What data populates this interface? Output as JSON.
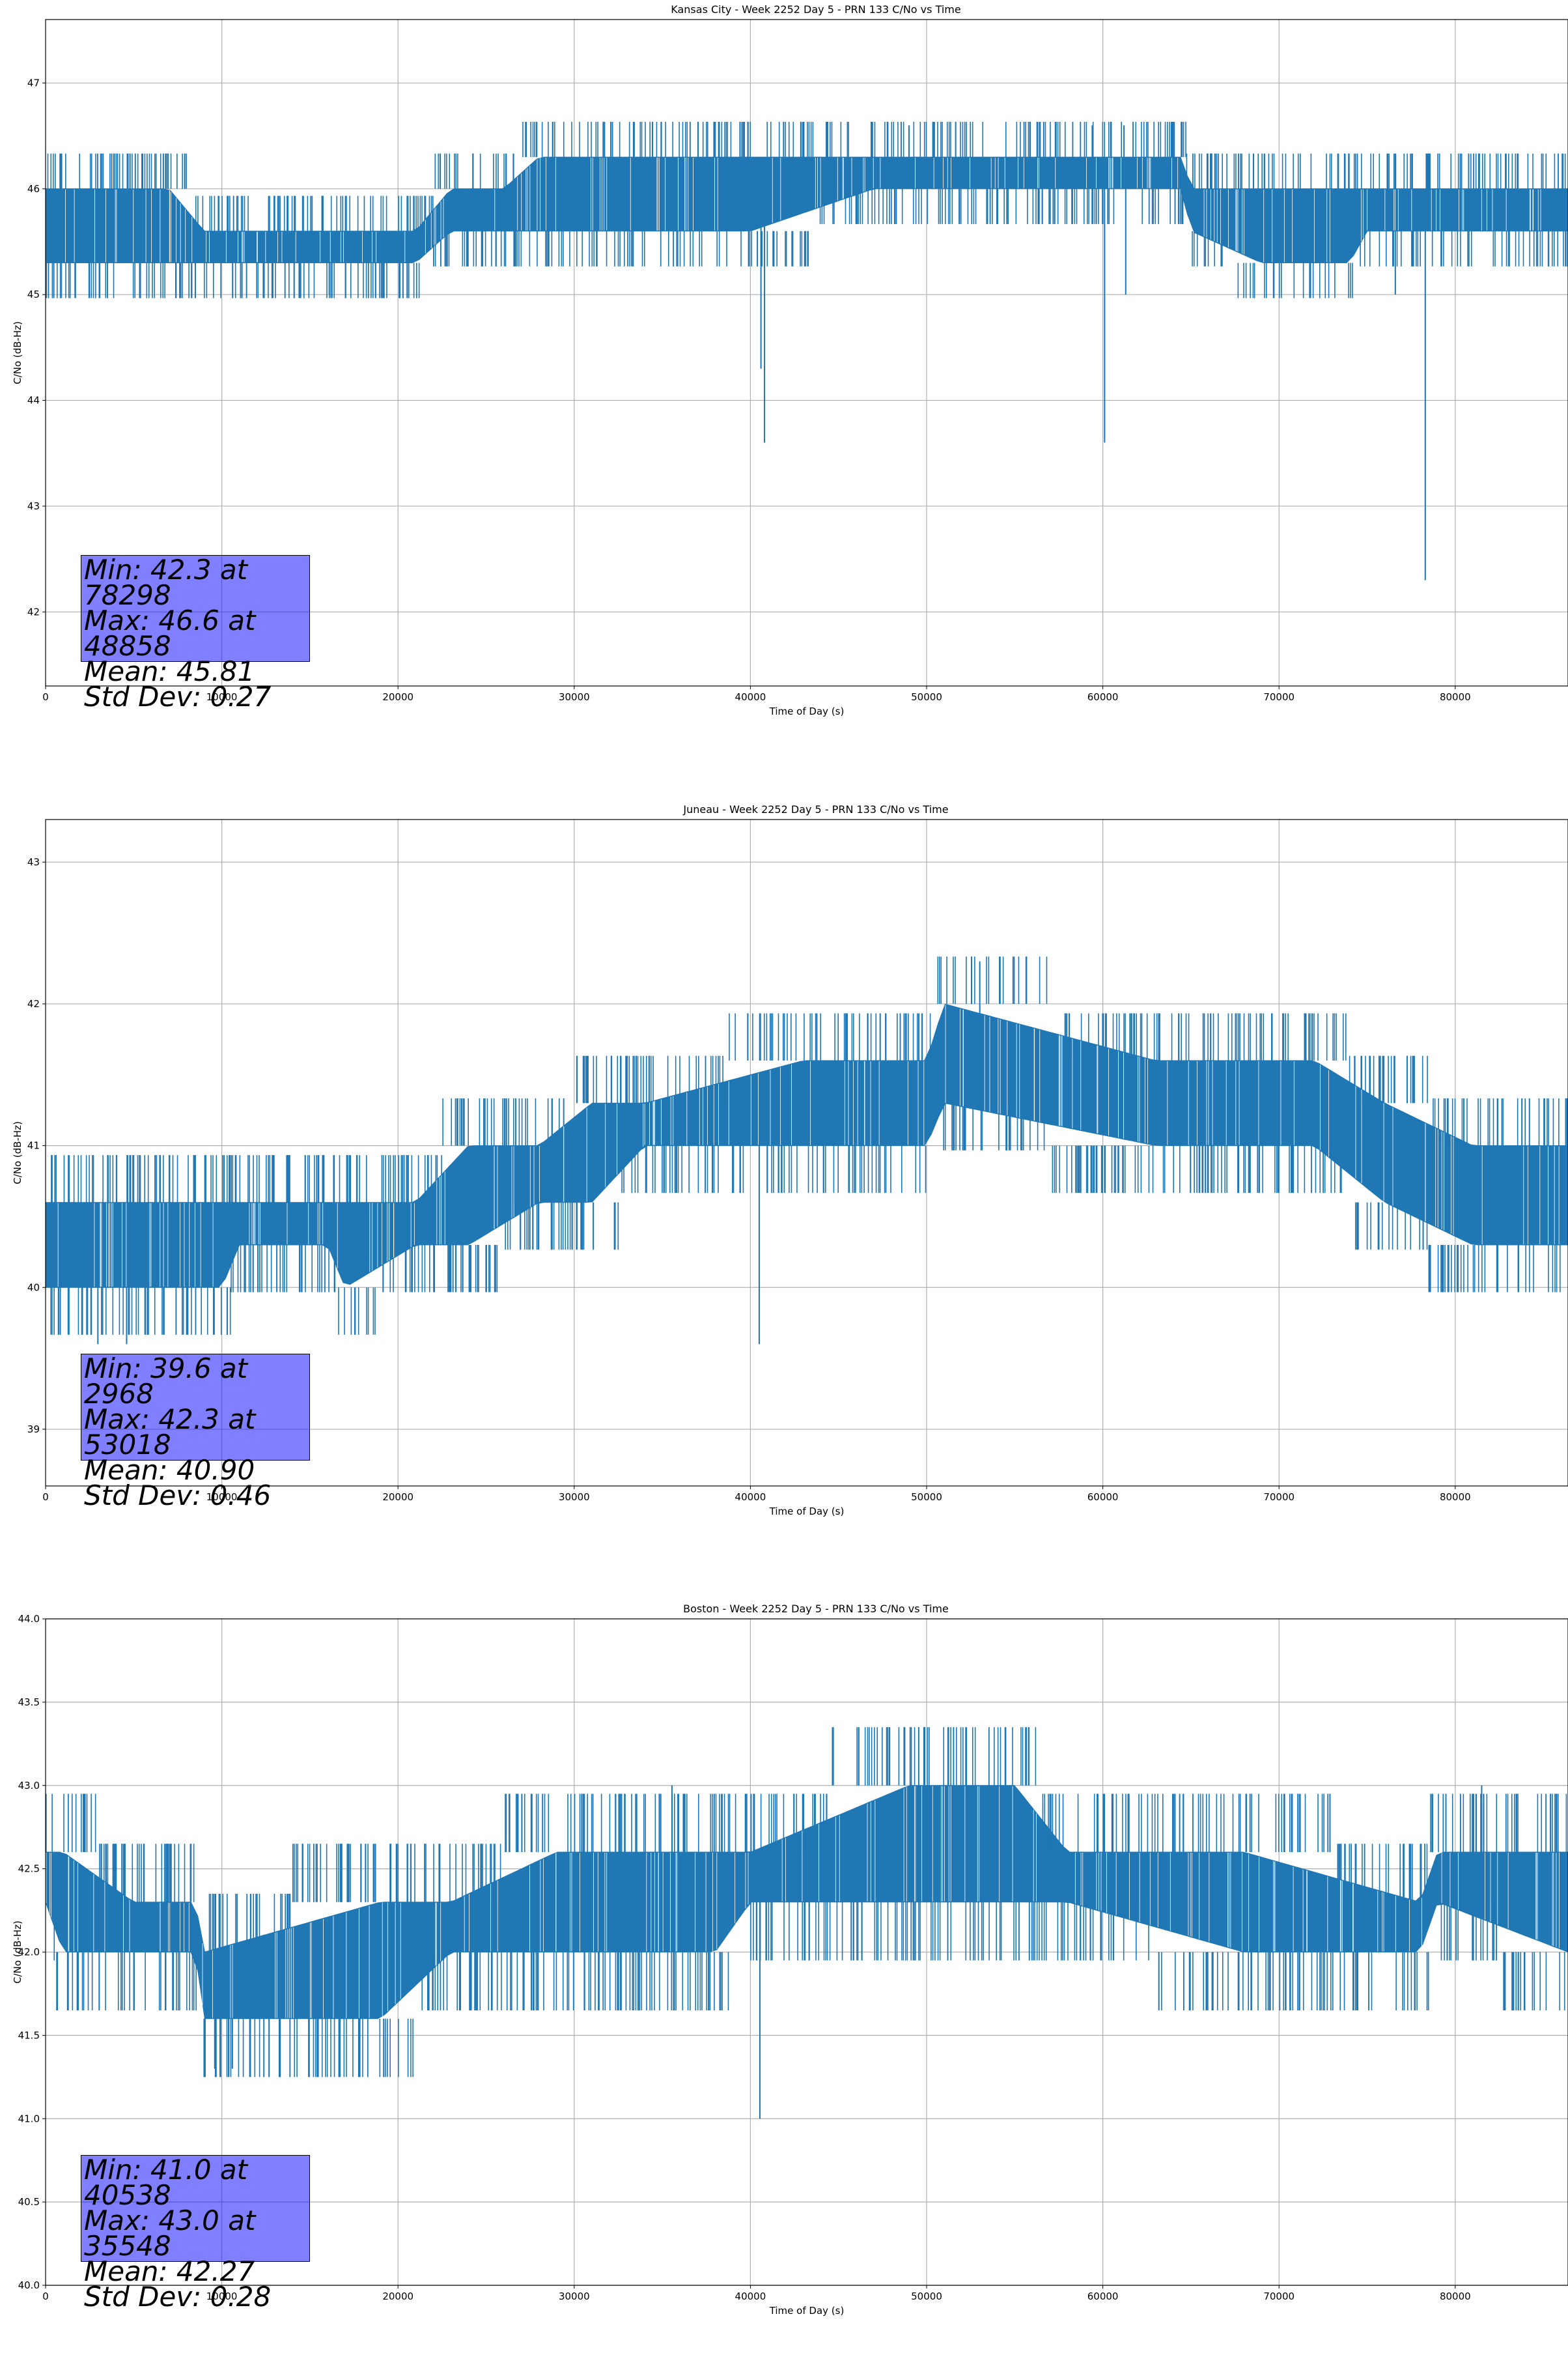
{
  "chart_data": [
    {
      "type": "line",
      "title": "Kansas City - Week 2252 Day 5 - PRN 133 C/No vs Time",
      "xlabel": "Time of Day (s)",
      "ylabel": "C/No (dB-Hz)",
      "xlim": [
        0,
        86400
      ],
      "ylim": [
        41.3,
        47.6
      ],
      "xticks": [
        0,
        10000,
        20000,
        30000,
        40000,
        50000,
        60000,
        70000,
        80000
      ],
      "yticks": [
        42,
        43,
        44,
        45,
        46,
        47
      ],
      "ytick_labels": [
        "42",
        "43",
        "44",
        "45",
        "46",
        "47"
      ],
      "grid": true,
      "color": "#1f77b4",
      "level_values": [
        45.3,
        45.6,
        46.0,
        46.3
      ],
      "profile": [
        {
          "x": 0,
          "lo": 45.3,
          "hi": 46.0
        },
        {
          "x": 7000,
          "lo": 45.3,
          "hi": 46.0
        },
        {
          "x": 9000,
          "lo": 45.3,
          "hi": 45.6
        },
        {
          "x": 21000,
          "lo": 45.3,
          "hi": 45.6
        },
        {
          "x": 23000,
          "lo": 45.6,
          "hi": 46.0
        },
        {
          "x": 26000,
          "lo": 45.6,
          "hi": 46.0
        },
        {
          "x": 28000,
          "lo": 45.6,
          "hi": 46.3
        },
        {
          "x": 40000,
          "lo": 45.6,
          "hi": 46.3
        },
        {
          "x": 47000,
          "lo": 46.0,
          "hi": 46.3
        },
        {
          "x": 64500,
          "lo": 46.0,
          "hi": 46.3
        },
        {
          "x": 65000,
          "lo": 45.6,
          "hi": 46.0
        },
        {
          "x": 69000,
          "lo": 45.3,
          "hi": 46.0
        },
        {
          "x": 74000,
          "lo": 45.3,
          "hi": 46.0
        },
        {
          "x": 75000,
          "lo": 45.6,
          "hi": 46.0
        },
        {
          "x": 86400,
          "lo": 45.6,
          "hi": 46.0
        }
      ],
      "spikes": [
        {
          "x": 16100,
          "y": 45.0
        },
        {
          "x": 40600,
          "y": 44.3
        },
        {
          "x": 40800,
          "y": 43.6
        },
        {
          "x": 49000,
          "y": 46.6
        },
        {
          "x": 59400,
          "y": 46.6
        },
        {
          "x": 60100,
          "y": 43.6
        },
        {
          "x": 61200,
          "y": 46.6
        },
        {
          "x": 61300,
          "y": 45.0
        },
        {
          "x": 76600,
          "y": 45.0
        },
        {
          "x": 78300,
          "y": 42.3
        }
      ],
      "stats": {
        "min": "Min: 42.3 at 78298",
        "max": "Max: 46.6 at 48858",
        "mean": "Mean: 45.81",
        "std": "Std Dev: 0.27"
      }
    },
    {
      "type": "line",
      "title": "Juneau - Week 2252 Day 5 - PRN 133 C/No vs Time",
      "xlabel": "Time of Day (s)",
      "ylabel": "C/No (dB-Hz)",
      "xlim": [
        0,
        86400
      ],
      "ylim": [
        38.6,
        43.3
      ],
      "xticks": [
        0,
        10000,
        20000,
        30000,
        40000,
        50000,
        60000,
        70000,
        80000
      ],
      "yticks": [
        39,
        40,
        41,
        42,
        43
      ],
      "ytick_labels": [
        "39",
        "40",
        "41",
        "42",
        "43"
      ],
      "grid": true,
      "color": "#1f77b4",
      "level_values": [
        40.0,
        40.3,
        40.6,
        41.0,
        41.3,
        41.6,
        42.0
      ],
      "profile": [
        {
          "x": 0,
          "lo": 40.0,
          "hi": 40.6
        },
        {
          "x": 10000,
          "lo": 40.0,
          "hi": 40.6
        },
        {
          "x": 11000,
          "lo": 40.3,
          "hi": 40.6
        },
        {
          "x": 16000,
          "lo": 40.3,
          "hi": 40.6
        },
        {
          "x": 17000,
          "lo": 40.0,
          "hi": 40.6
        },
        {
          "x": 21000,
          "lo": 40.3,
          "hi": 40.6
        },
        {
          "x": 24000,
          "lo": 40.3,
          "hi": 41.0
        },
        {
          "x": 28000,
          "lo": 40.6,
          "hi": 41.0
        },
        {
          "x": 31000,
          "lo": 40.6,
          "hi": 41.3
        },
        {
          "x": 34000,
          "lo": 41.0,
          "hi": 41.3
        },
        {
          "x": 43000,
          "lo": 41.0,
          "hi": 41.6
        },
        {
          "x": 50000,
          "lo": 41.0,
          "hi": 41.6
        },
        {
          "x": 51000,
          "lo": 41.3,
          "hi": 42.0
        },
        {
          "x": 63000,
          "lo": 41.0,
          "hi": 41.6
        },
        {
          "x": 72000,
          "lo": 41.0,
          "hi": 41.6
        },
        {
          "x": 76000,
          "lo": 40.6,
          "hi": 41.3
        },
        {
          "x": 81000,
          "lo": 40.3,
          "hi": 41.0
        },
        {
          "x": 86400,
          "lo": 40.3,
          "hi": 41.0
        }
      ],
      "spikes": [
        {
          "x": 2968,
          "y": 39.6
        },
        {
          "x": 4600,
          "y": 39.6
        },
        {
          "x": 40500,
          "y": 39.6
        },
        {
          "x": 53018,
          "y": 42.3
        }
      ],
      "stats": {
        "min": "Min: 39.6 at 2968",
        "max": "Max: 42.3 at 53018",
        "mean": "Mean: 40.90",
        "std": "Std Dev: 0.46"
      }
    },
    {
      "type": "line",
      "title": "Boston - Week 2252 Day 5 - PRN 133 C/No vs Time",
      "xlabel": "Time of Day (s)",
      "ylabel": "C/No (dB-Hz)",
      "xlim": [
        0,
        86400
      ],
      "ylim": [
        40.0,
        44.0
      ],
      "xticks": [
        0,
        10000,
        20000,
        30000,
        40000,
        50000,
        60000,
        70000,
        80000
      ],
      "yticks": [
        40.0,
        40.5,
        41.0,
        41.5,
        42.0,
        42.5,
        43.0,
        43.5,
        44.0
      ],
      "ytick_labels": [
        "40.0",
        "40.5",
        "41.0",
        "41.5",
        "42.0",
        "42.5",
        "43.0",
        "43.5",
        "44.0"
      ],
      "grid": true,
      "color": "#1f77b4",
      "level_values": [
        41.6,
        42.0,
        42.3,
        42.6,
        43.0
      ],
      "profile": [
        {
          "x": 0,
          "lo": 42.3,
          "hi": 42.6
        },
        {
          "x": 1000,
          "lo": 42.0,
          "hi": 42.6
        },
        {
          "x": 5000,
          "lo": 42.0,
          "hi": 42.3
        },
        {
          "x": 8500,
          "lo": 42.0,
          "hi": 42.3
        },
        {
          "x": 9000,
          "lo": 41.6,
          "hi": 42.0
        },
        {
          "x": 19000,
          "lo": 41.6,
          "hi": 42.3
        },
        {
          "x": 23000,
          "lo": 42.0,
          "hi": 42.3
        },
        {
          "x": 29000,
          "lo": 42.0,
          "hi": 42.6
        },
        {
          "x": 38000,
          "lo": 42.0,
          "hi": 42.6
        },
        {
          "x": 40000,
          "lo": 42.3,
          "hi": 42.6
        },
        {
          "x": 49000,
          "lo": 42.3,
          "hi": 43.0
        },
        {
          "x": 55000,
          "lo": 42.3,
          "hi": 43.0
        },
        {
          "x": 58000,
          "lo": 42.3,
          "hi": 42.6
        },
        {
          "x": 68000,
          "lo": 42.0,
          "hi": 42.6
        },
        {
          "x": 78000,
          "lo": 42.0,
          "hi": 42.3
        },
        {
          "x": 79000,
          "lo": 42.3,
          "hi": 42.6
        },
        {
          "x": 86400,
          "lo": 42.0,
          "hi": 42.6
        }
      ],
      "spikes": [
        {
          "x": 9600,
          "y": 41.3
        },
        {
          "x": 10600,
          "y": 41.3
        },
        {
          "x": 35548,
          "y": 43.0
        },
        {
          "x": 40538,
          "y": 41.0
        },
        {
          "x": 81500,
          "y": 43.0
        }
      ],
      "stats": {
        "min": "Min: 41.0 at 40538",
        "max": "Max: 43.0 at 35548",
        "mean": "Mean: 42.27",
        "std": "Std Dev: 0.28"
      }
    }
  ]
}
